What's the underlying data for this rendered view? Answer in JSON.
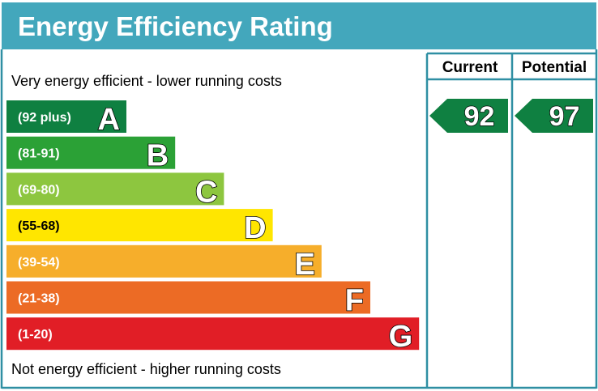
{
  "chart_data": {
    "type": "bar",
    "title": "Energy Efficiency Rating",
    "top_note": "Very energy efficient - lower running costs",
    "bottom_note": "Not energy efficient - higher running costs",
    "columns": [
      "Current",
      "Potential"
    ],
    "bands": [
      {
        "range": "(92 plus)",
        "letter": "A",
        "color": "#0f8041"
      },
      {
        "range": "(81-91)",
        "letter": "B",
        "color": "#2ba136"
      },
      {
        "range": "(69-80)",
        "letter": "C",
        "color": "#8dc63f"
      },
      {
        "range": "(55-68)",
        "letter": "D",
        "color": "#ffe600"
      },
      {
        "range": "(39-54)",
        "letter": "E",
        "color": "#f6ae2b"
      },
      {
        "range": "(21-38)",
        "letter": "F",
        "color": "#ec6b25"
      },
      {
        "range": "(1-20)",
        "letter": "G",
        "color": "#e11e26"
      }
    ],
    "current": {
      "value": 92,
      "band": "A",
      "color": "#0f8041"
    },
    "potential": {
      "value": 97,
      "band": "A",
      "color": "#0f8041"
    },
    "colors": {
      "header": "#43a7bc",
      "frame": "#2f8fa3",
      "text": "#000000",
      "label": "#ffffff"
    }
  }
}
